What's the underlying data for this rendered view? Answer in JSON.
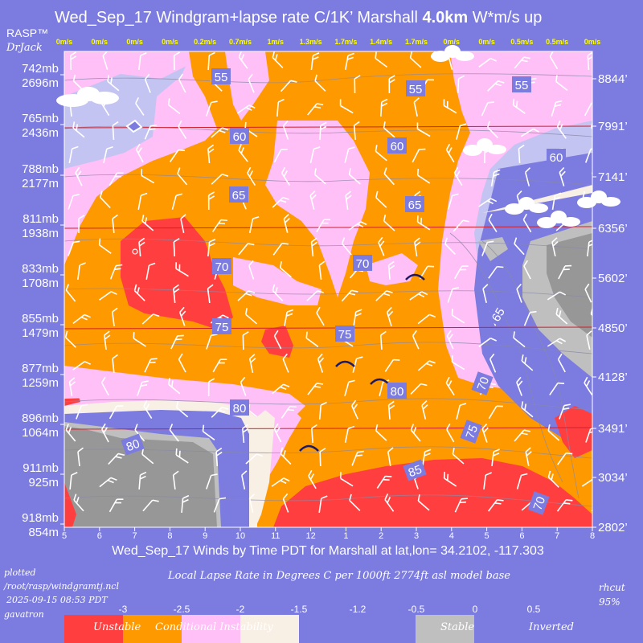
{
  "header": {
    "title_part1": "Wed_Sep_17 Windgram+lapse rate C/1K’  Marshall ",
    "title_bold": "4.0km",
    "title_part2": "  W*m/s up",
    "brand": "RASP™",
    "author": "DrJack"
  },
  "chart_data": {
    "type": "heatmap",
    "title": "Wed_Sep_17 Windgram+lapse rate C/1K’  Marshall 4.0km  W*m/s up",
    "x_ticks": [
      "5",
      "6",
      "7",
      "8",
      "9",
      "10",
      "11",
      "12",
      "1",
      "2",
      "3",
      "4",
      "5",
      "6",
      "7",
      "8"
    ],
    "xlabel": "Wed_Sep_17 Winds by Time PDT for Marshall at lat,lon= 34.2102, -117.303",
    "updraft_w": [
      "0m/s",
      "0m/s",
      "0m/s",
      "0m/s",
      "0.2m/s",
      "0.7m/s",
      "1m/s",
      "1.3m/s",
      "1.7m/s",
      "1.4m/s",
      "1.7m/s",
      "0m/s",
      "0m/s",
      "0.5m/s",
      "0.5m/s",
      "0m/s"
    ],
    "left_axis": [
      {
        "mb": "742mb",
        "m": "2696m"
      },
      {
        "mb": "765mb",
        "m": "2436m"
      },
      {
        "mb": "788mb",
        "m": "2177m"
      },
      {
        "mb": "811mb",
        "m": "1938m"
      },
      {
        "mb": "833mb",
        "m": "1708m"
      },
      {
        "mb": "855mb",
        "m": "1479m"
      },
      {
        "mb": "877mb",
        "m": "1259m"
      },
      {
        "mb": "896mb",
        "m": "1064m"
      },
      {
        "mb": "911mb",
        "m": "925m"
      },
      {
        "mb": "918mb",
        "m": "854m"
      }
    ],
    "right_axis": [
      "8844’",
      "7991’",
      "7141’",
      "6356’",
      "5602’",
      "4850’",
      "4128’",
      "3491’",
      "3034’",
      "2802’"
    ],
    "temperature_labels": [
      "55",
      "55",
      "55",
      "60",
      "60",
      "60",
      "65",
      "65",
      "65",
      "70",
      "70",
      "70",
      "75",
      "75",
      "75",
      "80",
      "80",
      "80",
      "85",
      "70"
    ],
    "legend": {
      "title": "Local Lapse Rate in Degrees C per 1000ft  2774ft asl model base",
      "ticks": [
        "-3",
        "-2.5",
        "-2",
        "-1.5",
        "-1.2",
        "-0.5",
        "0",
        "0.5"
      ],
      "categories": [
        {
          "name": "Unstable",
          "color": "#ff3f3f"
        },
        {
          "name": "Conditional Instability",
          "color": "#ff9900"
        },
        {
          "name": "",
          "color": "#ffbff7"
        },
        {
          "name": "",
          "color": "#f8efe5"
        },
        {
          "name": "Stable",
          "color": "#7b7be0"
        },
        {
          "name": "Inverted",
          "color": "#bfbfbf"
        }
      ]
    },
    "colors": {
      "unstable": "#ff3f3f",
      "conditional": "#ff9900",
      "pink": "#ffbff7",
      "cream": "#f8efe5",
      "stable": "#7b7be0",
      "lavender": "#c4c4f2",
      "inverted_light": "#bfbfbf",
      "inverted_dark": "#979797"
    }
  },
  "footer": {
    "plotted": "plotted",
    "path": "/root/rasp/windgramtj.ncl",
    "timestamp": "2025-09-15 08:53 PDT",
    "user": "gavatron",
    "rhcut_label": "rhcut",
    "rhcut_value": "95%"
  }
}
